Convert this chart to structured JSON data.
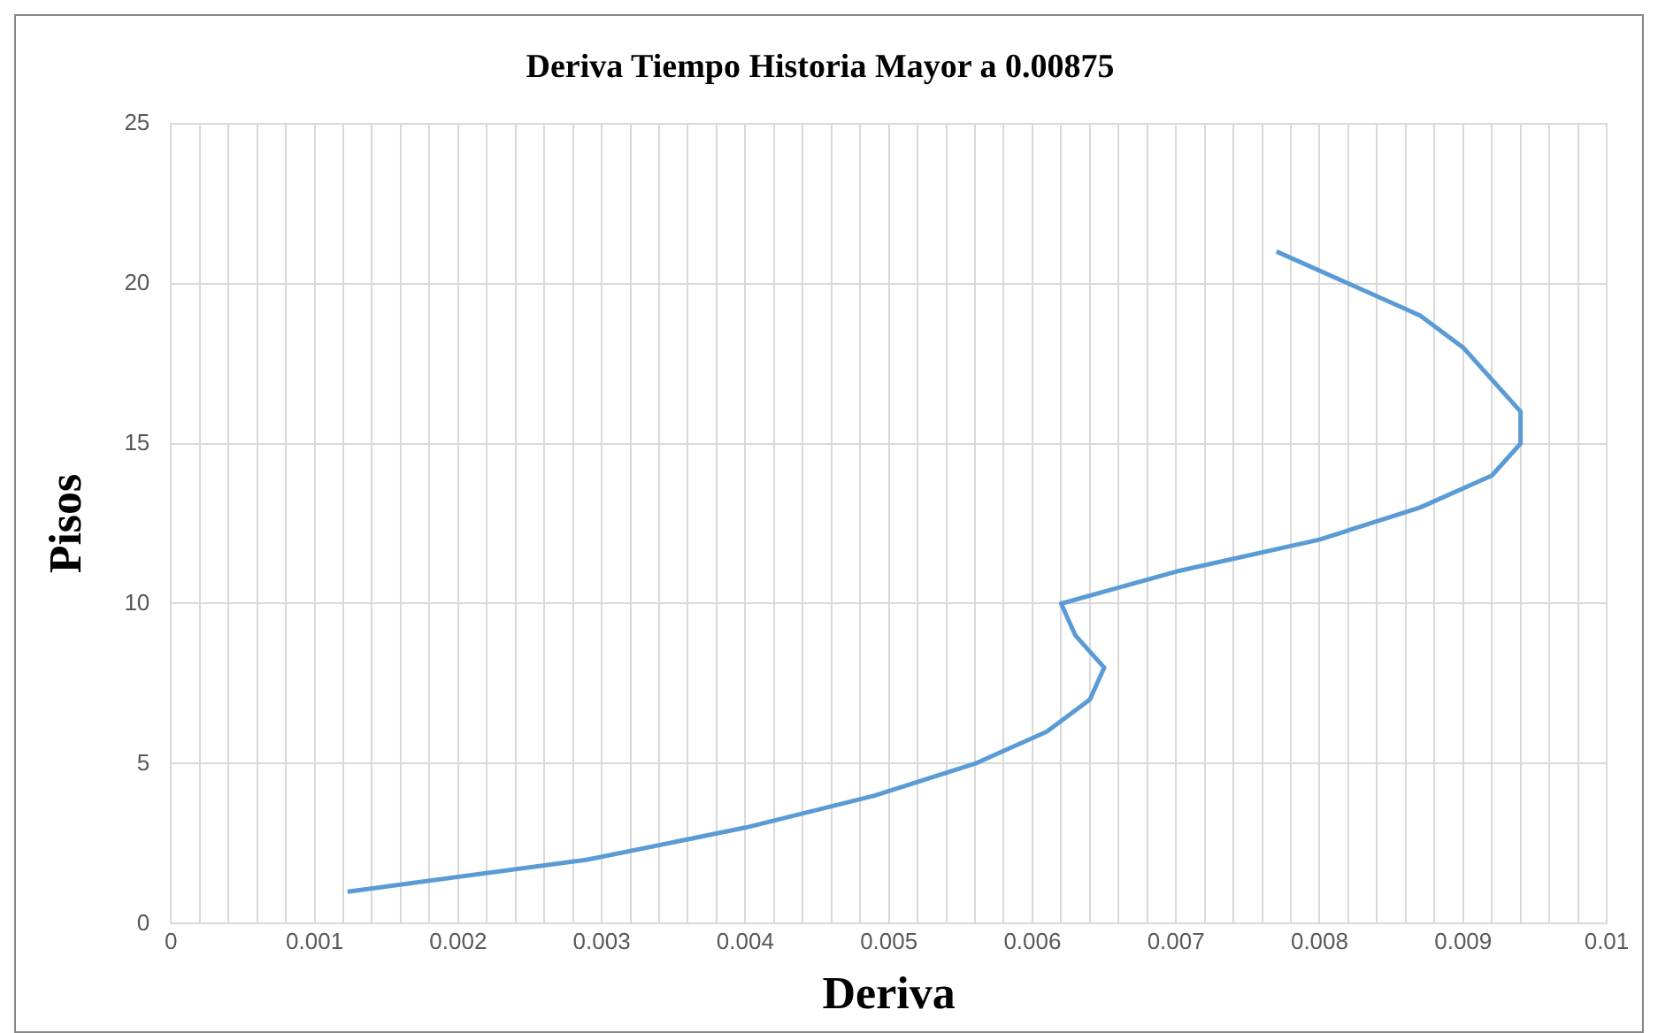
{
  "chart_data": {
    "type": "line",
    "title": "Deriva Tiempo Historia Mayor a 0.00875",
    "xlabel": "Deriva",
    "ylabel": "Pisos",
    "x": [
      0.00123,
      0.0029,
      0.004,
      0.0049,
      0.0056,
      0.0061,
      0.0064,
      0.0065,
      0.0063,
      0.0062,
      0.007,
      0.008,
      0.0087,
      0.0092,
      0.0094,
      0.0094,
      0.0092,
      0.009,
      0.0087,
      0.0082,
      0.0077
    ],
    "series": [
      {
        "color": "#5b9bd5",
        "values": [
          1,
          2,
          3,
          4,
          5,
          6,
          7,
          8,
          9,
          10,
          11,
          12,
          13,
          14,
          15,
          16,
          17,
          18,
          19,
          20,
          21
        ]
      }
    ],
    "xlim": [
      0,
      0.01
    ],
    "xticks": [
      0,
      {
        "value": 0.0002,
        "label": null
      },
      {
        "value": 0.0004,
        "label": null
      },
      {
        "value": 0.0006,
        "label": null
      },
      {
        "value": 0.0008,
        "label": null
      },
      0.001,
      {
        "value": 0.0012,
        "label": null
      },
      {
        "value": 0.0014,
        "label": null
      },
      {
        "value": 0.0016,
        "label": null
      },
      {
        "value": 0.0018,
        "label": null
      },
      0.002,
      {
        "value": 0.0022,
        "label": null
      },
      {
        "value": 0.0024,
        "label": null
      },
      {
        "value": 0.0026,
        "label": null
      },
      {
        "value": 0.0028,
        "label": null
      },
      0.003,
      {
        "value": 0.0032,
        "label": null
      },
      {
        "value": 0.0034,
        "label": null
      },
      {
        "value": 0.0036,
        "label": null
      },
      {
        "value": 0.0038,
        "label": null
      },
      0.004,
      {
        "value": 0.0042,
        "label": null
      },
      {
        "value": 0.0044,
        "label": null
      },
      {
        "value": 0.0046,
        "label": null
      },
      {
        "value": 0.0048,
        "label": null
      },
      0.005,
      {
        "value": 0.0052,
        "label": null
      },
      {
        "value": 0.0054,
        "label": null
      },
      {
        "value": 0.0056,
        "label": null
      },
      {
        "value": 0.0058,
        "label": null
      },
      0.006,
      {
        "value": 0.0062,
        "label": null
      },
      {
        "value": 0.0064,
        "label": null
      },
      {
        "value": 0.0066,
        "label": null
      },
      {
        "value": 0.0068,
        "label": null
      },
      0.007,
      {
        "value": 0.0072,
        "label": null
      },
      {
        "value": 0.0074,
        "label": null
      },
      {
        "value": 0.0076,
        "label": null
      },
      {
        "value": 0.0078,
        "label": null
      },
      0.008,
      {
        "value": 0.0082,
        "label": null
      },
      {
        "value": 0.0084,
        "label": null
      },
      {
        "value": 0.0086,
        "label": null
      },
      {
        "value": 0.0088,
        "label": null
      },
      0.009,
      {
        "value": 0.0092,
        "label": null
      },
      {
        "value": 0.0094,
        "label": null
      },
      {
        "value": 0.0096,
        "label": null
      },
      {
        "value": 0.0098,
        "label": null
      },
      0.01
    ],
    "ylim": [
      0,
      25
    ],
    "yticks": [
      0,
      5,
      10,
      15,
      20,
      25
    ],
    "grid": true,
    "legend": false,
    "marker": "none",
    "line_style": "solid"
  }
}
